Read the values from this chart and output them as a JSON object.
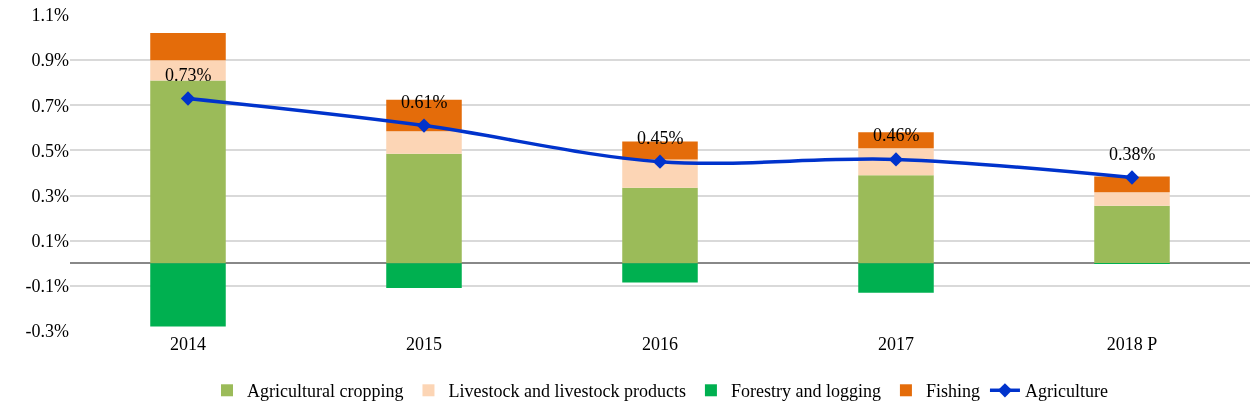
{
  "chart_data": {
    "type": "bar",
    "stacked": true,
    "categories": [
      "2014",
      "2015",
      "2016",
      "2017",
      "2018 P"
    ],
    "series": [
      {
        "name": "Agricultural cropping",
        "color": "#9bbb59",
        "values": [
          0.81,
          0.485,
          0.335,
          0.39,
          0.255
        ]
      },
      {
        "name": "Livestock and livestock products",
        "color": "#fcd5b5",
        "values": [
          0.09,
          0.1,
          0.125,
          0.12,
          0.06
        ]
      },
      {
        "name": "Forestry and logging",
        "color": "#00b050",
        "values": [
          -0.28,
          -0.11,
          -0.085,
          -0.13,
          -0.003
        ]
      },
      {
        "name": "Fishing",
        "color": "#e46c0a",
        "values": [
          0.12,
          0.14,
          0.08,
          0.07,
          0.07
        ]
      },
      {
        "name": "Agriculture",
        "type": "line",
        "color": "#0033cc",
        "marker": "diamond",
        "values": [
          0.73,
          0.61,
          0.45,
          0.46,
          0.38
        ],
        "value_labels": [
          "0.73%",
          "0.61%",
          "0.45%",
          "0.46%",
          "0.38%"
        ]
      }
    ],
    "ylim": [
      -0.3,
      1.1
    ],
    "yticks": [
      {
        "value": -0.3,
        "label": "-0.3%"
      },
      {
        "value": -0.1,
        "label": "-0.1%"
      },
      {
        "value": 0.1,
        "label": "0.1%"
      },
      {
        "value": 0.3,
        "label": "0.3%"
      },
      {
        "value": 0.5,
        "label": "0.5%"
      },
      {
        "value": 0.7,
        "label": "0.7%"
      },
      {
        "value": 0.9,
        "label": "0.9%"
      },
      {
        "value": 1.1,
        "label": "1.1%"
      }
    ],
    "grid": "y",
    "legend": "bottom"
  }
}
